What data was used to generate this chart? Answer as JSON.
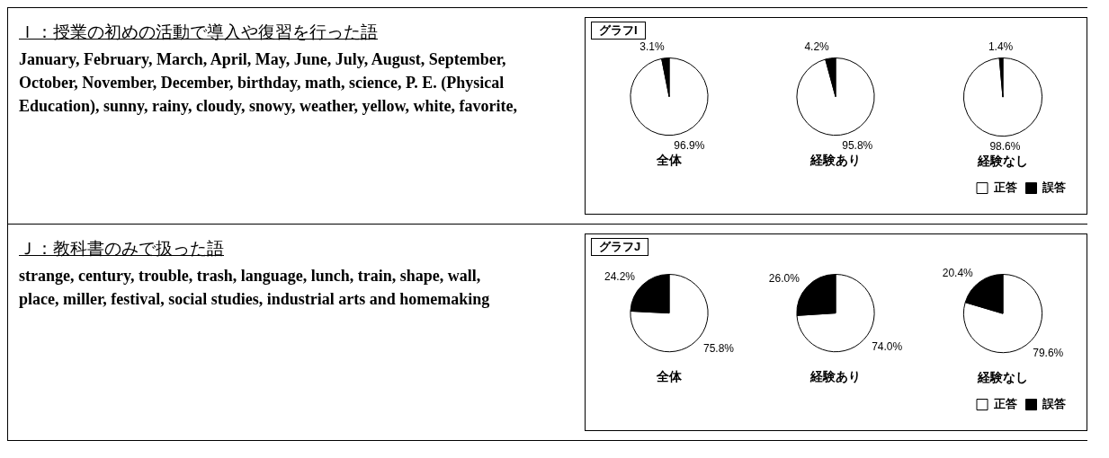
{
  "chart_data": [
    {
      "type": "other",
      "title": "Ｉ：授業の初めの活動で導入や復習を行った語",
      "annotations": [
        "January, February, March, April, May, June, July, August, September, October, November, December, birthday, math, science, P. E. (Physical Education), sunny, rainy, cloudy, snowy, weather, yellow, white, favorite,"
      ]
    },
    {
      "type": "pie",
      "title": "グラフI",
      "xlabel": "全体",
      "categories": [
        null,
        null
      ],
      "values": [
        96.9,
        3.1
      ],
      "value_labels": [
        "96.9%",
        "3.1%"
      ],
      "colors": [
        "#ffffff",
        "#000000"
      ]
    },
    {
      "type": "pie",
      "xlabel": "経験あり",
      "categories": [
        null,
        null
      ],
      "values": [
        95.8,
        4.2
      ],
      "value_labels": [
        "95.8%",
        "4.2%"
      ],
      "colors": [
        "#ffffff",
        "#000000"
      ]
    },
    {
      "type": "pie",
      "xlabel": "経験なし",
      "categories": [
        "正答",
        "誤答"
      ],
      "values": [
        98.6,
        1.4
      ],
      "value_labels": [
        "98.6%",
        "1.4%"
      ],
      "colors": [
        "#ffffff",
        "#000000"
      ],
      "legend": "bottom right"
    },
    {
      "type": "other",
      "title": "Ｊ：教科書のみで扱った語",
      "annotations": [
        "strange, century, trouble, trash, language, lunch, train, shape, wall, place, miller, festival, social studies, industrial arts and homemaking"
      ]
    },
    {
      "type": "pie",
      "title": "グラフJ",
      "xlabel": "全体",
      "categories": [
        null,
        null
      ],
      "values": [
        75.8,
        24.2
      ],
      "value_labels": [
        "75.8%",
        "24.2%"
      ],
      "colors": [
        "#ffffff",
        "#000000"
      ]
    },
    {
      "type": "pie",
      "xlabel": "経験あり",
      "categories": [
        null,
        null
      ],
      "values": [
        74.0,
        26.0
      ],
      "value_labels": [
        "74.0%",
        "26.0%"
      ],
      "colors": [
        "#ffffff",
        "#000000"
      ]
    },
    {
      "type": "pie",
      "xlabel": "経験なし",
      "categories": [
        "正答",
        "誤答"
      ],
      "values": [
        79.6,
        20.4
      ],
      "value_labels": [
        "79.6%",
        "20.4%"
      ],
      "colors": [
        "#ffffff",
        "#000000"
      ],
      "legend": "bottom right"
    }
  ]
}
